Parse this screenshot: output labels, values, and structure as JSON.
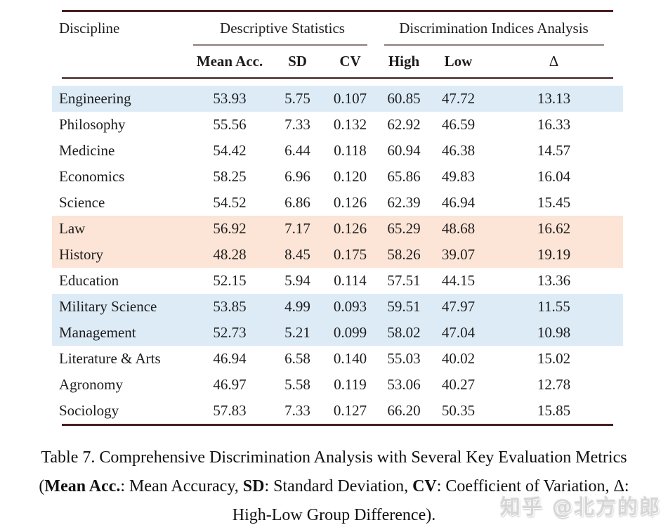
{
  "table": {
    "col1_header": "Discipline",
    "group_headers": {
      "group1": "Descriptive Statistics",
      "group2": "Discrimination Indices Analysis"
    },
    "subheaders": {
      "mean_acc": "Mean Acc.",
      "sd": "SD",
      "cv": "CV",
      "high": "High",
      "low": "Low",
      "delta": "Δ"
    },
    "rows": [
      {
        "discipline": "Engineering",
        "values": [
          "53.93",
          "5.75",
          "0.107",
          "60.85",
          "47.72",
          "13.13"
        ],
        "highlight": "blue"
      },
      {
        "discipline": "Philosophy",
        "values": [
          "55.56",
          "7.33",
          "0.132",
          "62.92",
          "46.59",
          "16.33"
        ],
        "highlight": null
      },
      {
        "discipline": "Medicine",
        "values": [
          "54.42",
          "6.44",
          "0.118",
          "60.94",
          "46.38",
          "14.57"
        ],
        "highlight": null
      },
      {
        "discipline": "Economics",
        "values": [
          "58.25",
          "6.96",
          "0.120",
          "65.86",
          "49.83",
          "16.04"
        ],
        "highlight": null
      },
      {
        "discipline": "Science",
        "values": [
          "54.52",
          "6.86",
          "0.126",
          "62.39",
          "46.94",
          "15.45"
        ],
        "highlight": null
      },
      {
        "discipline": "Law",
        "values": [
          "56.92",
          "7.17",
          "0.126",
          "65.29",
          "48.68",
          "16.62"
        ],
        "highlight": "orange"
      },
      {
        "discipline": "History",
        "values": [
          "48.28",
          "8.45",
          "0.175",
          "58.26",
          "39.07",
          "19.19"
        ],
        "highlight": "orange"
      },
      {
        "discipline": "Education",
        "values": [
          "52.15",
          "5.94",
          "0.114",
          "57.51",
          "44.15",
          "13.36"
        ],
        "highlight": null
      },
      {
        "discipline": "Military Science",
        "values": [
          "53.85",
          "4.99",
          "0.093",
          "59.51",
          "47.97",
          "11.55"
        ],
        "highlight": "blue"
      },
      {
        "discipline": "Management",
        "values": [
          "52.73",
          "5.21",
          "0.099",
          "58.02",
          "47.04",
          "10.98"
        ],
        "highlight": "blue"
      },
      {
        "discipline": "Literature & Arts",
        "values": [
          "46.94",
          "6.58",
          "0.140",
          "55.03",
          "40.02",
          "15.02"
        ],
        "highlight": null
      },
      {
        "discipline": "Agronomy",
        "values": [
          "46.97",
          "5.58",
          "0.119",
          "53.06",
          "40.27",
          "12.78"
        ],
        "highlight": null
      },
      {
        "discipline": "Sociology",
        "values": [
          "57.83",
          "7.33",
          "0.127",
          "66.20",
          "50.35",
          "15.85"
        ],
        "highlight": null
      }
    ]
  },
  "caption": {
    "line1": "Table 7. Comprehensive Discrimination Analysis with Several Key Evaluation Metrics",
    "line2_segments": [
      {
        "text": "("
      },
      {
        "text": "Mean Acc."
      },
      {
        "text": ": Mean Accuracy, "
      },
      {
        "text": "SD"
      },
      {
        "text": ": Standard Deviation, "
      },
      {
        "text": "CV"
      },
      {
        "text": ": Coefficient of Variation, Δ:"
      }
    ],
    "line3": "High-Low Group Difference)."
  },
  "watermark": {
    "text": "知乎 @北方的郎"
  },
  "colors": {
    "heavy_rule": "#451f1f",
    "mid_rule": "#3a1b1b",
    "cmid_rule": "#8e7c7c",
    "highlight_blue": "#ddebf7",
    "highlight_orange": "#fce4d6",
    "text": "#1c1c1c"
  }
}
